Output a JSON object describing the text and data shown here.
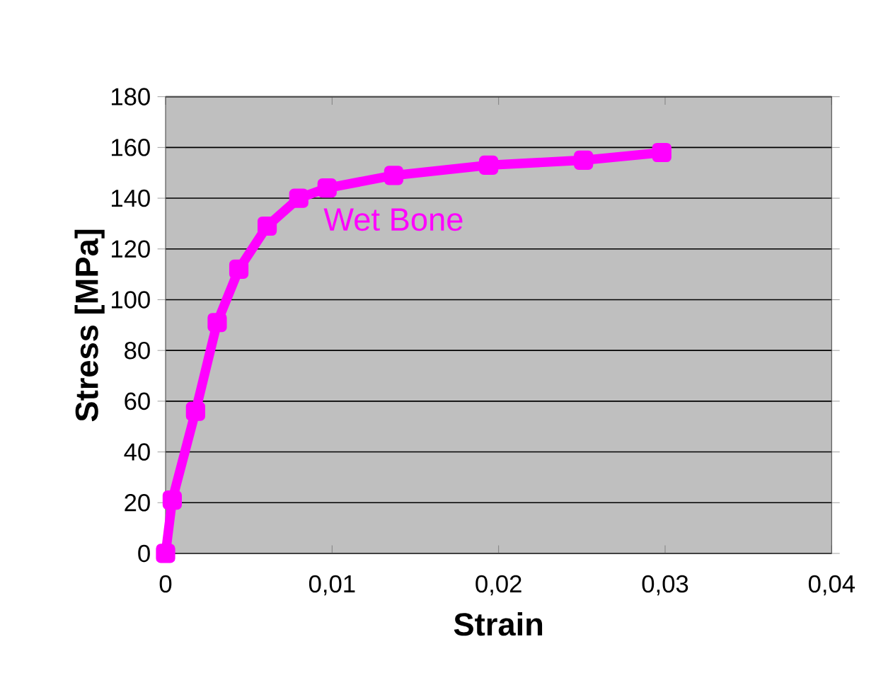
{
  "chart_data": {
    "type": "line",
    "xlabel": "Strain",
    "ylabel": "Stress [MPa]",
    "xlim": [
      0,
      0.04
    ],
    "ylim": [
      0,
      180
    ],
    "xticks": [
      {
        "value": 0,
        "label": "0"
      },
      {
        "value": 0.01,
        "label": "0,01"
      },
      {
        "value": 0.02,
        "label": "0,02"
      },
      {
        "value": 0.03,
        "label": "0,03"
      },
      {
        "value": 0.04,
        "label": "0,04"
      }
    ],
    "yticks": [
      0,
      20,
      40,
      60,
      80,
      100,
      120,
      140,
      160,
      180
    ],
    "grid": "y",
    "legend": false,
    "marker": "square",
    "line_style": "solid",
    "series": [
      {
        "name": "Wet Bone",
        "color": "#ff00ff",
        "x": [
          0,
          0.0004,
          0.0018,
          0.0031,
          0.0044,
          0.0061,
          0.008,
          0.0097,
          0.0137,
          0.0194,
          0.0251,
          0.0298
        ],
        "values": [
          0,
          21,
          56,
          91,
          112,
          129,
          140,
          144,
          149,
          153,
          155,
          158
        ]
      }
    ]
  }
}
